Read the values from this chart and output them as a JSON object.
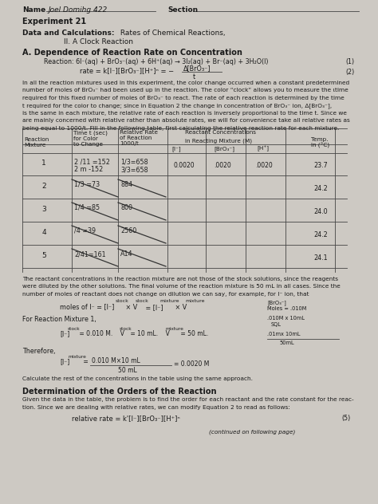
{
  "bg_color": "#cdc9c3",
  "name_text": "Joel Domihg 422",
  "experiment": "Experiment 21",
  "section_a": "A. Dependence of Reaction Rate on Concentration",
  "row_data": [
    [
      "1",
      "2 /11 =152\n2 m -152",
      "1/3=658\n3/3=658",
      "0.0020",
      ".0020",
      ".0020",
      "23.7"
    ],
    [
      "2",
      "1/3 =73",
      "884",
      "",
      "",
      "",
      "24.2"
    ],
    [
      "3",
      "1/4 =85",
      "800",
      "",
      "",
      "",
      "24.0"
    ],
    [
      "4",
      "/4 =39",
      "2560",
      "",
      "",
      "",
      "24.2"
    ],
    [
      "5",
      "2/41=161",
      "A14",
      "",
      "",
      "",
      "24.1"
    ]
  ]
}
